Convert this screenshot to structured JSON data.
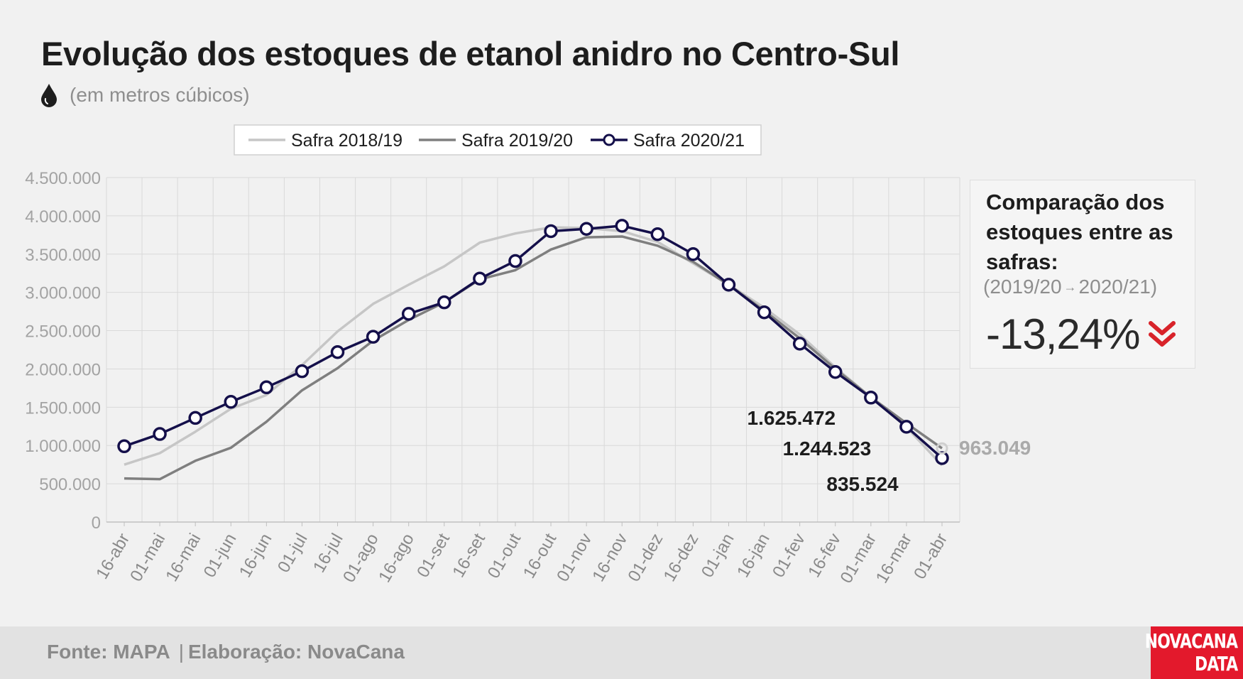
{
  "header": {
    "title": "Evolução dos estoques de etanol anidro no Centro-Sul",
    "subtitle": "(em metros cúbicos)",
    "subtitle_icon": "drop-icon"
  },
  "comparison": {
    "title": "Comparação dos estoques entre as safras:",
    "from": "(2019/20",
    "arrow": "→",
    "to": "2020/21)",
    "value": "-13,24%",
    "icon": "double-chevron-down-icon",
    "icon_color": "#d8232a"
  },
  "footer": {
    "source": "Fonte: MAPA",
    "separator": "|",
    "credit": "Elaboração: NovaCana",
    "logo_line1": "NOVACANA",
    "logo_line2": "DATA",
    "logo_color": "#e3192c"
  },
  "chart_data": {
    "type": "line",
    "categories": [
      "16-abr",
      "01-mai",
      "16-mai",
      "01-jun",
      "16-jun",
      "01-jul",
      "16-jul",
      "01-ago",
      "16-ago",
      "01-set",
      "16-set",
      "01-out",
      "16-out",
      "01-nov",
      "16-nov",
      "01-dez",
      "16-dez",
      "01-jan",
      "16-jan",
      "01-fev",
      "16-fev",
      "01-mar",
      "16-mar",
      "01-abr"
    ],
    "ylim": [
      0,
      4500000
    ],
    "yticks": [
      0,
      500000,
      1000000,
      1500000,
      2000000,
      2500000,
      3000000,
      3500000,
      4000000,
      4500000
    ],
    "ytick_labels": [
      "0",
      "500.000",
      "1.000.000",
      "1.500.000",
      "2.000.000",
      "2.500.000",
      "3.000.000",
      "3.500.000",
      "4.000.000",
      "4.500.000"
    ],
    "grid": true,
    "legend_position": "top",
    "series": [
      {
        "name": "Safra 2018/19",
        "color": "#c6c6c6",
        "markers": false,
        "values": [
          750000,
          900000,
          1180000,
          1480000,
          1660000,
          2050000,
          2490000,
          2850000,
          3100000,
          3340000,
          3650000,
          3770000,
          3850000,
          3840000,
          3800000,
          3660000,
          3380000,
          3100000,
          2800000,
          2450000,
          2020000,
          1630000,
          1240000,
          740000
        ]
      },
      {
        "name": "Safra 2019/20",
        "color": "#7f7f7f",
        "markers": false,
        "values": [
          570000,
          560000,
          800000,
          970000,
          1310000,
          1720000,
          2010000,
          2370000,
          2640000,
          2870000,
          3170000,
          3290000,
          3560000,
          3720000,
          3730000,
          3610000,
          3400000,
          3100000,
          2760000,
          2400000,
          2000000,
          1630000,
          1290000,
          963049
        ]
      },
      {
        "name": "Safra 2020/21",
        "color": "#140f4a",
        "markers": true,
        "values": [
          990000,
          1150000,
          1360000,
          1570000,
          1760000,
          1970000,
          2220000,
          2420000,
          2720000,
          2870000,
          3180000,
          3410000,
          3800000,
          3830000,
          3870000,
          3760000,
          3500000,
          3100000,
          2740000,
          2330000,
          1960000,
          1625472,
          1244523,
          835524
        ]
      }
    ],
    "annotations": [
      {
        "text": "1.625.472",
        "series": 2,
        "index": 21,
        "color": "#1d1d1d"
      },
      {
        "text": "1.244.523",
        "series": 2,
        "index": 22,
        "color": "#1d1d1d"
      },
      {
        "text": "835.524",
        "series": 2,
        "index": 23,
        "color": "#1d1d1d"
      },
      {
        "text": "963.049",
        "series": 1,
        "index": 23,
        "color": "#aaaaaa"
      }
    ]
  }
}
